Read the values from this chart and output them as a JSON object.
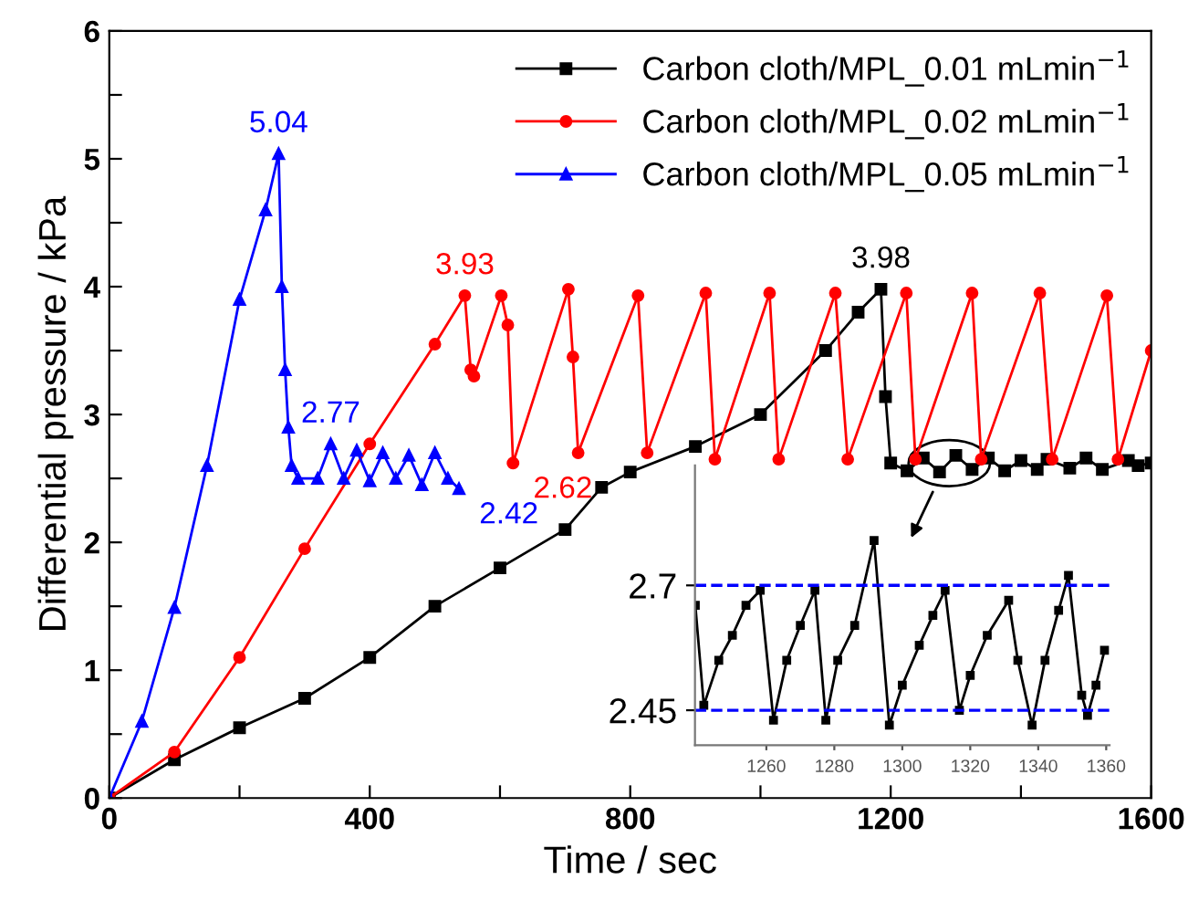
{
  "chart_data": [
    {
      "type": "line",
      "xlabel": "Time / sec",
      "ylabel": "Differential pressure / kPa",
      "xlim": [
        0,
        1600
      ],
      "ylim": [
        0,
        6
      ],
      "xticks": [
        0,
        {
          "value": 200,
          "label": null
        },
        400,
        {
          "value": 600,
          "label": null
        },
        800,
        {
          "value": 1000,
          "label": null
        },
        1200,
        {
          "value": 1400,
          "label": null
        },
        1600
      ],
      "yticks": [
        0,
        {
          "value": 0.5,
          "label": null
        },
        1,
        {
          "value": 1.5,
          "label": null
        },
        2,
        {
          "value": 2.5,
          "label": null
        },
        3,
        {
          "value": 3.5,
          "label": null
        },
        4,
        {
          "value": 4.5,
          "label": null
        },
        5,
        {
          "value": 5.5,
          "label": null
        },
        6
      ],
      "legend": "top right",
      "line_style": "solid",
      "series": [
        {
          "name": "Carbon cloth/MPL_0.01 mLmin$^{−1}$",
          "color": "#000000",
          "marker": "square",
          "x": [
            0,
            100,
            200,
            300,
            400,
            500,
            600,
            700,
            756,
            800,
            900,
            1000,
            1100,
            1150,
            1185,
            1192,
            1200,
            1225,
            1250,
            1275,
            1300,
            1325,
            1350,
            1375,
            1400,
            1425,
            1440,
            1475,
            1500,
            1525,
            1565,
            1580,
            1600
          ],
          "values": [
            0,
            0.3,
            0.55,
            0.78,
            1.1,
            1.5,
            1.8,
            2.1,
            2.43,
            2.55,
            2.75,
            3.0,
            3.5,
            3.8,
            3.98,
            3.14,
            2.62,
            2.56,
            2.66,
            2.55,
            2.68,
            2.57,
            2.66,
            2.56,
            2.64,
            2.57,
            2.65,
            2.58,
            2.66,
            2.57,
            2.64,
            2.6,
            2.62
          ]
        },
        {
          "name": "Carbon cloth/MPL_0.02 mLmin$^{−1}$",
          "color": "#ff0000",
          "marker": "circle",
          "x": [
            0,
            100,
            200,
            300,
            400,
            500,
            546,
            555,
            560,
            602,
            612,
            620,
            705,
            712,
            720,
            812,
            826,
            916,
            930,
            1014,
            1028,
            1115,
            1134,
            1224,
            1238,
            1325,
            1339,
            1429,
            1448,
            1532,
            1549,
            1600
          ],
          "values": [
            0,
            0.36,
            1.1,
            1.95,
            2.77,
            3.55,
            3.93,
            3.35,
            3.3,
            3.93,
            3.7,
            2.62,
            3.98,
            3.45,
            2.7,
            3.93,
            2.7,
            3.95,
            2.65,
            3.95,
            2.65,
            3.95,
            2.65,
            3.95,
            2.65,
            3.95,
            2.65,
            3.95,
            2.65,
            3.93,
            2.65,
            3.5
          ]
        },
        {
          "name": "Carbon cloth/MPL_0.05 mLmin$^{−1}$",
          "color": "#0000ff",
          "marker": "triangle",
          "x": [
            0,
            50,
            100,
            150,
            200,
            240,
            260,
            265,
            270,
            275,
            280,
            290,
            320,
            340,
            360,
            380,
            400,
            420,
            440,
            460,
            480,
            500,
            520,
            537
          ],
          "values": [
            0,
            0.6,
            1.49,
            2.6,
            3.9,
            4.6,
            5.04,
            4.0,
            3.35,
            2.9,
            2.6,
            2.5,
            2.5,
            2.77,
            2.5,
            2.72,
            2.48,
            2.7,
            2.5,
            2.68,
            2.45,
            2.7,
            2.5,
            2.42
          ]
        }
      ],
      "annotations": [
        {
          "text": "5.04",
          "x": 260,
          "y": 5.04
        },
        {
          "text": "2.77",
          "x": 340,
          "y": 2.77
        },
        {
          "text": "2.42",
          "x": 537,
          "y": 2.42
        },
        {
          "text": "3.93",
          "x": 546,
          "y": 3.93
        },
        {
          "text": "2.62",
          "x": 620,
          "y": 2.62
        },
        {
          "text": "3.98",
          "x": 1185,
          "y": 3.98
        }
      ]
    },
    {
      "type": "line",
      "xlim": [
        1239,
        1361
      ],
      "ylim": [
        2.38,
        2.94
      ],
      "xticks": [
        1260,
        1280,
        1300,
        1320,
        1340,
        1360
      ],
      "yticks": [
        2.45,
        2.7
      ],
      "ref_lines": [
        {
          "axis": "y",
          "value": 2.7,
          "color": "#0000ff",
          "line_style": "dashed"
        },
        {
          "axis": "y",
          "value": 2.45,
          "color": "#0000ff",
          "line_style": "dashed"
        }
      ],
      "series": [
        {
          "color": "#000000",
          "marker": "square",
          "x": [
            1239.1,
            1241.6,
            1246,
            1250,
            1254,
            1258.2,
            1262.1,
            1266,
            1270,
            1274.3,
            1277.5,
            1281,
            1286,
            1291.7,
            1296.2,
            1300,
            1305,
            1309,
            1312.6,
            1316.8,
            1320,
            1325,
            1331.3,
            1334,
            1338.2,
            1342,
            1346,
            1348.9,
            1352.8,
            1354.5,
            1357,
            1359.5
          ],
          "values": [
            2.66,
            2.46,
            2.55,
            2.6,
            2.66,
            2.69,
            2.43,
            2.55,
            2.62,
            2.69,
            2.43,
            2.55,
            2.62,
            2.79,
            2.42,
            2.5,
            2.58,
            2.64,
            2.69,
            2.45,
            2.52,
            2.6,
            2.67,
            2.55,
            2.42,
            2.55,
            2.65,
            2.72,
            2.48,
            2.44,
            2.5,
            2.57
          ]
        }
      ]
    }
  ]
}
